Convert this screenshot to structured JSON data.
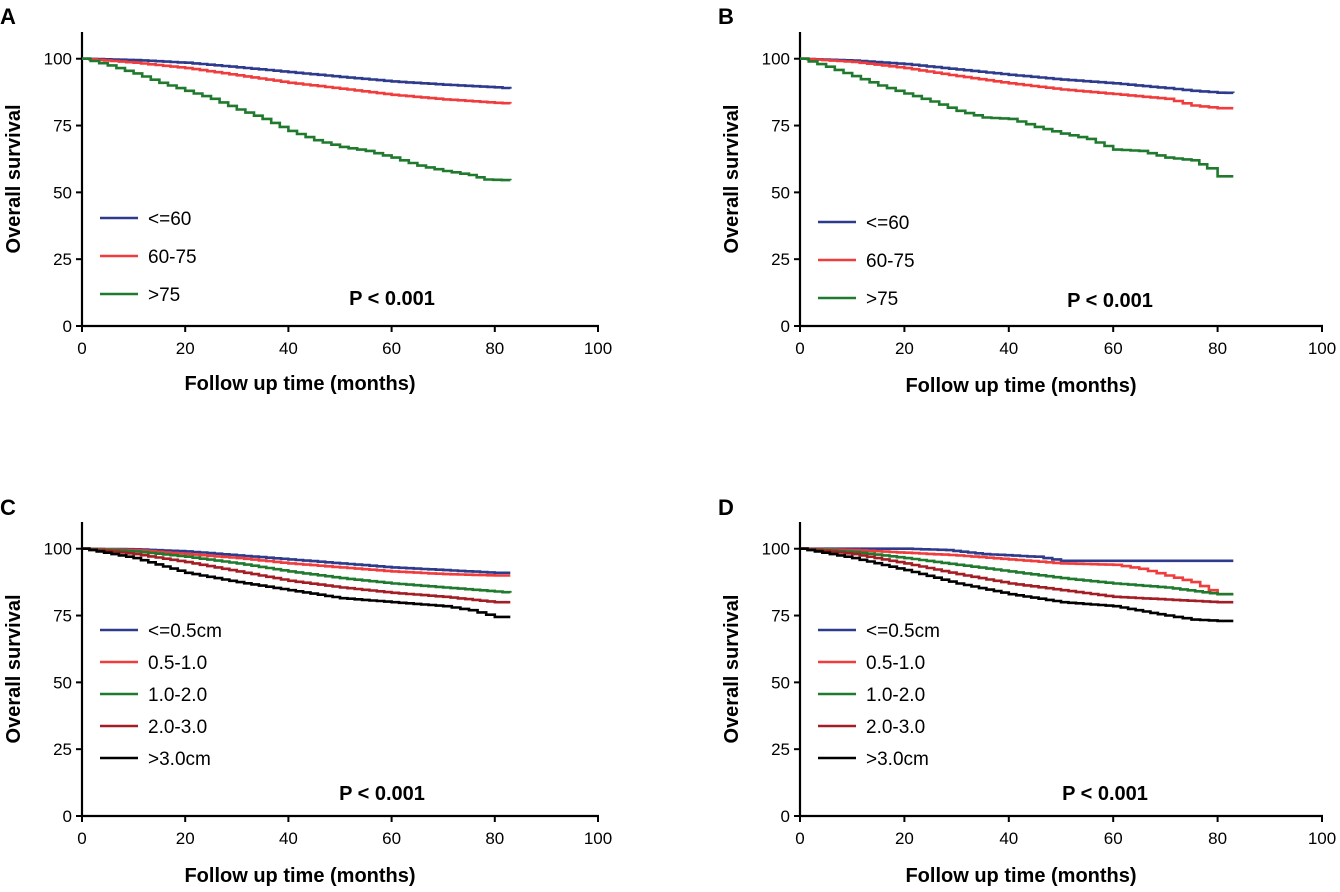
{
  "colors": {
    "blue": "#2e3a8c",
    "red": "#f03c3c",
    "green": "#1f7a2e",
    "darkred": "#a31e24",
    "black": "#000000"
  },
  "chart_data": [
    {
      "type": "line",
      "panel": "A",
      "xlabel": "Follow up time (months)",
      "ylabel": "Overall survival",
      "xlim": [
        0,
        100
      ],
      "ylim": [
        0,
        110
      ],
      "xticks": [
        0,
        20,
        40,
        60,
        80,
        100
      ],
      "yticks": [
        0,
        25,
        50,
        75,
        100
      ],
      "annotation": "P < 0.001",
      "legend_position": "bottom-left",
      "series": [
        {
          "name": "<=60",
          "color": "blue",
          "x": [
            0,
            10,
            20,
            30,
            40,
            50,
            60,
            70,
            80,
            83
          ],
          "y": [
            100,
            99.5,
            98.5,
            96.8,
            95,
            93.2,
            91.5,
            90.3,
            89.3,
            88.8
          ]
        },
        {
          "name": "60-75",
          "color": "red",
          "x": [
            0,
            10,
            20,
            30,
            40,
            50,
            60,
            70,
            80,
            83
          ],
          "y": [
            100,
            98.5,
            96.5,
            93.8,
            91,
            88.8,
            86.5,
            84.8,
            83.5,
            83.2
          ]
        },
        {
          "name": ">75",
          "color": "green",
          "x": [
            0,
            5,
            10,
            15,
            20,
            25,
            30,
            35,
            40,
            45,
            50,
            55,
            60,
            65,
            70,
            75,
            78,
            83
          ],
          "y": [
            100,
            97.5,
            94.5,
            91,
            88,
            85,
            81,
            77.5,
            73,
            69.5,
            67,
            65.5,
            63,
            60,
            58,
            56.5,
            54.8,
            54.5
          ]
        }
      ]
    },
    {
      "type": "line",
      "panel": "B",
      "xlabel": "Follow up time (months)",
      "ylabel": "Overall survival",
      "xlim": [
        0,
        100
      ],
      "ylim": [
        0,
        110
      ],
      "xticks": [
        0,
        20,
        40,
        60,
        80,
        100
      ],
      "yticks": [
        0,
        25,
        50,
        75,
        100
      ],
      "annotation": "P < 0.001",
      "legend_position": "bottom-left",
      "series": [
        {
          "name": "<=60",
          "color": "blue",
          "x": [
            0,
            10,
            20,
            30,
            40,
            50,
            60,
            70,
            75,
            80,
            83
          ],
          "y": [
            100,
            99.3,
            98,
            96,
            94,
            92.2,
            90.8,
            89,
            88,
            87.3,
            87.2
          ]
        },
        {
          "name": "60-75",
          "color": "red",
          "x": [
            0,
            10,
            20,
            30,
            40,
            50,
            60,
            70,
            75,
            80,
            83
          ],
          "y": [
            100,
            98.8,
            96.5,
            93.5,
            90.8,
            88.5,
            86.8,
            85,
            82.5,
            81.5,
            81.5
          ]
        },
        {
          "name": ">75",
          "color": "green",
          "x": [
            0,
            5,
            10,
            15,
            20,
            25,
            30,
            35,
            40,
            45,
            50,
            55,
            60,
            65,
            70,
            75,
            78,
            80,
            83
          ],
          "y": [
            100,
            97,
            93.5,
            90,
            87,
            84,
            80.5,
            78,
            77.5,
            74.5,
            72,
            70,
            66,
            65.5,
            63,
            62,
            59,
            56,
            56
          ]
        }
      ]
    },
    {
      "type": "line",
      "panel": "C",
      "xlabel": "Follow up time (months)",
      "ylabel": "Overall survival",
      "xlim": [
        0,
        100
      ],
      "ylim": [
        0,
        110
      ],
      "xticks": [
        0,
        20,
        40,
        60,
        80,
        100
      ],
      "yticks": [
        0,
        25,
        50,
        75,
        100
      ],
      "annotation": "P < 0.001",
      "legend_position": "bottom-left",
      "series": [
        {
          "name": "<=0.5cm",
          "color": "blue",
          "x": [
            0,
            10,
            20,
            30,
            40,
            50,
            60,
            70,
            80,
            83
          ],
          "y": [
            100,
            99.8,
            99,
            97.5,
            96,
            94.5,
            93,
            92,
            91,
            91
          ]
        },
        {
          "name": "0.5-1.0",
          "color": "red",
          "x": [
            0,
            10,
            20,
            30,
            40,
            50,
            60,
            70,
            80,
            83
          ],
          "y": [
            100,
            99.5,
            98,
            96.5,
            94.5,
            93,
            91.5,
            90.5,
            90,
            90
          ]
        },
        {
          "name": "1.0-2.0",
          "color": "green",
          "x": [
            0,
            10,
            20,
            30,
            40,
            50,
            60,
            70,
            80,
            83
          ],
          "y": [
            100,
            99,
            97,
            94.5,
            91.5,
            89,
            87,
            85.5,
            84,
            83.5
          ]
        },
        {
          "name": "2.0-3.0",
          "color": "darkred",
          "x": [
            0,
            10,
            20,
            30,
            40,
            50,
            60,
            70,
            80,
            83
          ],
          "y": [
            100,
            98,
            95,
            91.5,
            88,
            85.5,
            83.5,
            82,
            80,
            80
          ]
        },
        {
          "name": ">3.0cm",
          "color": "black",
          "x": [
            0,
            10,
            20,
            30,
            40,
            50,
            60,
            70,
            75,
            80,
            83
          ],
          "y": [
            100,
            96.5,
            91,
            87.5,
            84.5,
            81.5,
            80,
            78.5,
            77,
            74.5,
            74.5
          ]
        }
      ]
    },
    {
      "type": "line",
      "panel": "D",
      "xlabel": "Follow up time (months)",
      "ylabel": "Overall survival",
      "xlim": [
        0,
        100
      ],
      "ylim": [
        0,
        110
      ],
      "xticks": [
        0,
        20,
        40,
        60,
        80,
        100
      ],
      "yticks": [
        0,
        25,
        50,
        75,
        100
      ],
      "annotation": "P < 0.001",
      "legend_position": "bottom-left",
      "series": [
        {
          "name": "<=0.5cm",
          "color": "blue",
          "x": [
            0,
            20,
            28,
            35,
            45,
            50,
            60,
            70,
            80,
            83
          ],
          "y": [
            100,
            100,
            99.5,
            98,
            97,
            95.5,
            95.5,
            95.5,
            95.5,
            95.5
          ]
        },
        {
          "name": "0.5-1.0",
          "color": "red",
          "x": [
            0,
            10,
            20,
            30,
            40,
            50,
            60,
            65,
            70,
            75,
            80,
            83
          ],
          "y": [
            100,
            99.5,
            98.5,
            97.5,
            96,
            94.5,
            94,
            92.5,
            90,
            87.5,
            83,
            83
          ]
        },
        {
          "name": "1.0-2.0",
          "color": "green",
          "x": [
            0,
            10,
            20,
            30,
            40,
            50,
            60,
            70,
            80,
            83
          ],
          "y": [
            100,
            98.8,
            96.5,
            94,
            91.5,
            89,
            87,
            85.5,
            83,
            83
          ]
        },
        {
          "name": "2.0-3.0",
          "color": "darkred",
          "x": [
            0,
            10,
            20,
            30,
            40,
            50,
            60,
            70,
            80,
            83
          ],
          "y": [
            100,
            98,
            94.5,
            90.5,
            87,
            84.5,
            82,
            81,
            80,
            80
          ]
        },
        {
          "name": ">3.0cm",
          "color": "black",
          "x": [
            0,
            10,
            20,
            30,
            40,
            50,
            60,
            70,
            75,
            80,
            83
          ],
          "y": [
            100,
            96.5,
            92,
            87,
            83,
            80,
            78.5,
            75,
            73.5,
            73,
            73
          ]
        }
      ]
    }
  ]
}
